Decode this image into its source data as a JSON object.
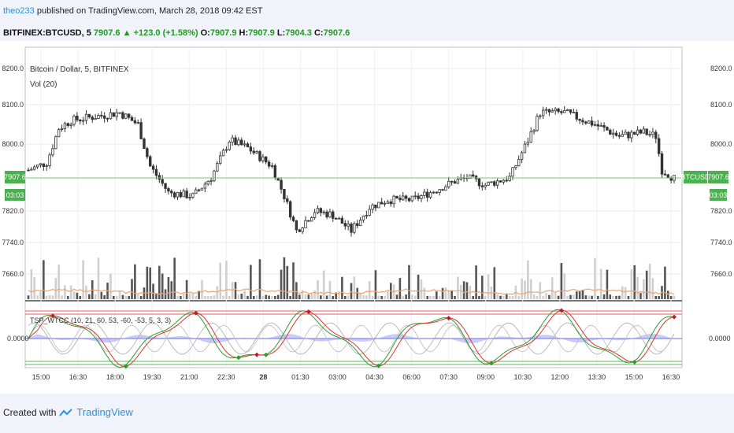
{
  "header": {
    "user": "theo233",
    "published": "published on TradingView.com, March 28, 2018 09:42 EST",
    "symbol": "BITFINEX:BTCUSD, 5",
    "last": "7907.6",
    "change": "+123.0 (+1.58%)",
    "o_label": "O:",
    "o": "7907.9",
    "h_label": "H:",
    "h": "7907.9",
    "l_label": "L:",
    "l": "7904.3",
    "c_label": "C:",
    "c": "7907.6"
  },
  "pane": {
    "title": "Bitcoin / Dollar, 5, BITFINEX",
    "vol_label": "Vol (20)",
    "osc_label": "TSP_WTCC (10, 21, 60, 53, -60, -53, 5, 3, 3)",
    "price_tag": "7907.6",
    "ticker_tag": "BTCUSD",
    "countdown": "03:03",
    "osc_zero": "0.0000"
  },
  "footer": {
    "created": "Created with",
    "brand": "TradingView"
  },
  "colors": {
    "up": "#444444",
    "down": "#111111",
    "ma": "#f6a26a",
    "band_red": "#e85c5c",
    "band_green": "#5fb85f",
    "fill": "#8a8ff0"
  },
  "chart_data": {
    "type": "candlestick",
    "y_ticks": [
      "8200.0",
      "8100.0",
      "8000.0",
      "7820.0",
      "7740.0",
      "7660.0"
    ],
    "x_ticks": [
      "15:00",
      "16:30",
      "18:00",
      "19:30",
      "21:00",
      "22:30",
      "28",
      "01:30",
      "03:00",
      "04:30",
      "06:00",
      "07:30",
      "09:00",
      "10:30",
      "12:00",
      "13:30",
      "15:00",
      "16:30"
    ],
    "anchors": [
      {
        "t": 0,
        "p": 7930
      },
      {
        "t": 6,
        "p": 7950
      },
      {
        "t": 10,
        "p": 8040
      },
      {
        "t": 14,
        "p": 8060
      },
      {
        "t": 22,
        "p": 8070
      },
      {
        "t": 30,
        "p": 8080
      },
      {
        "t": 36,
        "p": 8050
      },
      {
        "t": 40,
        "p": 7940
      },
      {
        "t": 46,
        "p": 7870
      },
      {
        "t": 54,
        "p": 7860
      },
      {
        "t": 60,
        "p": 7910
      },
      {
        "t": 66,
        "p": 8010
      },
      {
        "t": 72,
        "p": 7990
      },
      {
        "t": 80,
        "p": 7940
      },
      {
        "t": 84,
        "p": 7860
      },
      {
        "t": 88,
        "p": 7770
      },
      {
        "t": 94,
        "p": 7820
      },
      {
        "t": 100,
        "p": 7810
      },
      {
        "t": 106,
        "p": 7770
      },
      {
        "t": 112,
        "p": 7830
      },
      {
        "t": 118,
        "p": 7850
      },
      {
        "t": 126,
        "p": 7850
      },
      {
        "t": 132,
        "p": 7870
      },
      {
        "t": 140,
        "p": 7900
      },
      {
        "t": 144,
        "p": 7910
      },
      {
        "t": 150,
        "p": 7890
      },
      {
        "t": 158,
        "p": 7910
      },
      {
        "t": 164,
        "p": 8010
      },
      {
        "t": 168,
        "p": 8080
      },
      {
        "t": 176,
        "p": 8080
      },
      {
        "t": 186,
        "p": 8050
      },
      {
        "t": 194,
        "p": 8020
      },
      {
        "t": 202,
        "p": 8030
      },
      {
        "t": 206,
        "p": 8020
      },
      {
        "t": 208,
        "p": 7930
      },
      {
        "t": 212,
        "p": 7907.6
      }
    ]
  }
}
